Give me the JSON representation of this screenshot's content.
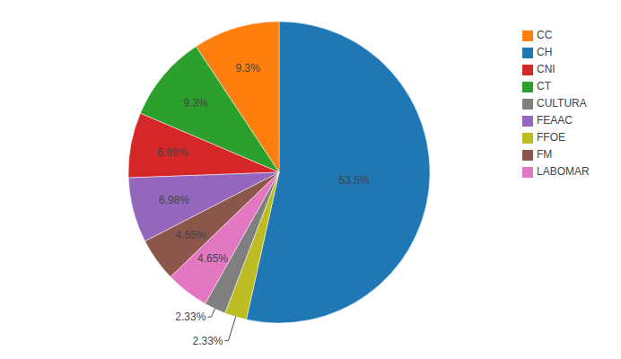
{
  "chart_data": {
    "type": "pie",
    "categories": [
      "CH",
      "CC",
      "CT",
      "CNI",
      "FEAAC",
      "FM",
      "LABOMAR",
      "CULTURA",
      "FFOE"
    ],
    "values": [
      53.5,
      9.3,
      9.3,
      6.98,
      6.98,
      4.65,
      4.65,
      2.33,
      2.33
    ],
    "value_labels": [
      "53.5%",
      "9.3%",
      "9.3%",
      "6.98%",
      "6.98%",
      "4.65%",
      "4.65%",
      "2.33%",
      "2.33%"
    ],
    "colors": [
      "#1f77b4",
      "#ff7f0e",
      "#2ca02c",
      "#d62728",
      "#9467bd",
      "#8c564b",
      "#e377c2",
      "#7f7f7f",
      "#bcbd22"
    ],
    "data_labels": true,
    "legend": "top-right"
  }
}
